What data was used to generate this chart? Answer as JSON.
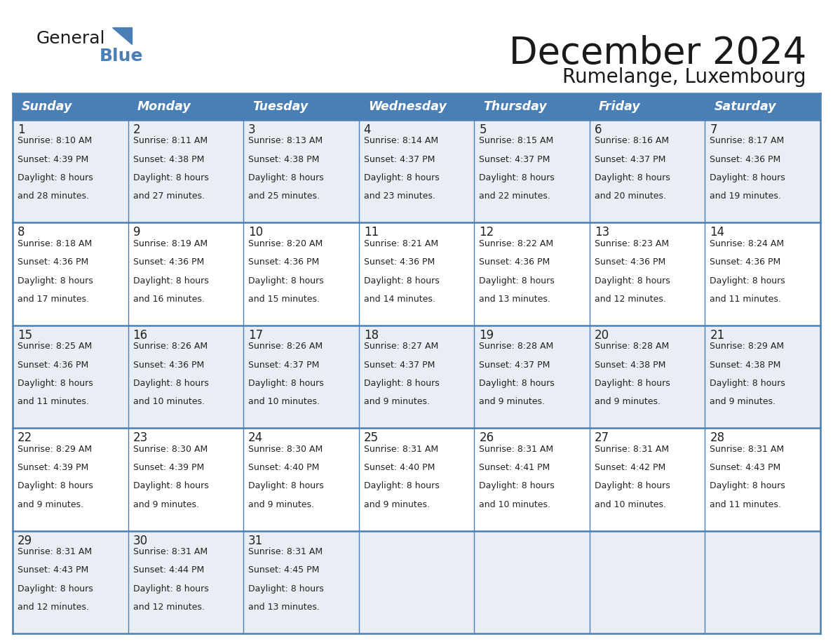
{
  "title": "December 2024",
  "subtitle": "Rumelange, Luxembourg",
  "header_bg": "#4a7fb5",
  "header_text_color": "#ffffff",
  "day_names": [
    "Sunday",
    "Monday",
    "Tuesday",
    "Wednesday",
    "Thursday",
    "Friday",
    "Saturday"
  ],
  "cell_bg_odd": "#e8eef4",
  "cell_bg_even": "#ffffff",
  "border_color": "#4a7fb5",
  "calendar_data": [
    [
      {
        "day": 1,
        "sunrise": "8:10 AM",
        "sunset": "4:39 PM",
        "daylight_line3": "Daylight: 8 hours",
        "daylight_line4": "and 28 minutes."
      },
      {
        "day": 2,
        "sunrise": "8:11 AM",
        "sunset": "4:38 PM",
        "daylight_line3": "Daylight: 8 hours",
        "daylight_line4": "and 27 minutes."
      },
      {
        "day": 3,
        "sunrise": "8:13 AM",
        "sunset": "4:38 PM",
        "daylight_line3": "Daylight: 8 hours",
        "daylight_line4": "and 25 minutes."
      },
      {
        "day": 4,
        "sunrise": "8:14 AM",
        "sunset": "4:37 PM",
        "daylight_line3": "Daylight: 8 hours",
        "daylight_line4": "and 23 minutes."
      },
      {
        "day": 5,
        "sunrise": "8:15 AM",
        "sunset": "4:37 PM",
        "daylight_line3": "Daylight: 8 hours",
        "daylight_line4": "and 22 minutes."
      },
      {
        "day": 6,
        "sunrise": "8:16 AM",
        "sunset": "4:37 PM",
        "daylight_line3": "Daylight: 8 hours",
        "daylight_line4": "and 20 minutes."
      },
      {
        "day": 7,
        "sunrise": "8:17 AM",
        "sunset": "4:36 PM",
        "daylight_line3": "Daylight: 8 hours",
        "daylight_line4": "and 19 minutes."
      }
    ],
    [
      {
        "day": 8,
        "sunrise": "8:18 AM",
        "sunset": "4:36 PM",
        "daylight_line3": "Daylight: 8 hours",
        "daylight_line4": "and 17 minutes."
      },
      {
        "day": 9,
        "sunrise": "8:19 AM",
        "sunset": "4:36 PM",
        "daylight_line3": "Daylight: 8 hours",
        "daylight_line4": "and 16 minutes."
      },
      {
        "day": 10,
        "sunrise": "8:20 AM",
        "sunset": "4:36 PM",
        "daylight_line3": "Daylight: 8 hours",
        "daylight_line4": "and 15 minutes."
      },
      {
        "day": 11,
        "sunrise": "8:21 AM",
        "sunset": "4:36 PM",
        "daylight_line3": "Daylight: 8 hours",
        "daylight_line4": "and 14 minutes."
      },
      {
        "day": 12,
        "sunrise": "8:22 AM",
        "sunset": "4:36 PM",
        "daylight_line3": "Daylight: 8 hours",
        "daylight_line4": "and 13 minutes."
      },
      {
        "day": 13,
        "sunrise": "8:23 AM",
        "sunset": "4:36 PM",
        "daylight_line3": "Daylight: 8 hours",
        "daylight_line4": "and 12 minutes."
      },
      {
        "day": 14,
        "sunrise": "8:24 AM",
        "sunset": "4:36 PM",
        "daylight_line3": "Daylight: 8 hours",
        "daylight_line4": "and 11 minutes."
      }
    ],
    [
      {
        "day": 15,
        "sunrise": "8:25 AM",
        "sunset": "4:36 PM",
        "daylight_line3": "Daylight: 8 hours",
        "daylight_line4": "and 11 minutes."
      },
      {
        "day": 16,
        "sunrise": "8:26 AM",
        "sunset": "4:36 PM",
        "daylight_line3": "Daylight: 8 hours",
        "daylight_line4": "and 10 minutes."
      },
      {
        "day": 17,
        "sunrise": "8:26 AM",
        "sunset": "4:37 PM",
        "daylight_line3": "Daylight: 8 hours",
        "daylight_line4": "and 10 minutes."
      },
      {
        "day": 18,
        "sunrise": "8:27 AM",
        "sunset": "4:37 PM",
        "daylight_line3": "Daylight: 8 hours",
        "daylight_line4": "and 9 minutes."
      },
      {
        "day": 19,
        "sunrise": "8:28 AM",
        "sunset": "4:37 PM",
        "daylight_line3": "Daylight: 8 hours",
        "daylight_line4": "and 9 minutes."
      },
      {
        "day": 20,
        "sunrise": "8:28 AM",
        "sunset": "4:38 PM",
        "daylight_line3": "Daylight: 8 hours",
        "daylight_line4": "and 9 minutes."
      },
      {
        "day": 21,
        "sunrise": "8:29 AM",
        "sunset": "4:38 PM",
        "daylight_line3": "Daylight: 8 hours",
        "daylight_line4": "and 9 minutes."
      }
    ],
    [
      {
        "day": 22,
        "sunrise": "8:29 AM",
        "sunset": "4:39 PM",
        "daylight_line3": "Daylight: 8 hours",
        "daylight_line4": "and 9 minutes."
      },
      {
        "day": 23,
        "sunrise": "8:30 AM",
        "sunset": "4:39 PM",
        "daylight_line3": "Daylight: 8 hours",
        "daylight_line4": "and 9 minutes."
      },
      {
        "day": 24,
        "sunrise": "8:30 AM",
        "sunset": "4:40 PM",
        "daylight_line3": "Daylight: 8 hours",
        "daylight_line4": "and 9 minutes."
      },
      {
        "day": 25,
        "sunrise": "8:31 AM",
        "sunset": "4:40 PM",
        "daylight_line3": "Daylight: 8 hours",
        "daylight_line4": "and 9 minutes."
      },
      {
        "day": 26,
        "sunrise": "8:31 AM",
        "sunset": "4:41 PM",
        "daylight_line3": "Daylight: 8 hours",
        "daylight_line4": "and 10 minutes."
      },
      {
        "day": 27,
        "sunrise": "8:31 AM",
        "sunset": "4:42 PM",
        "daylight_line3": "Daylight: 8 hours",
        "daylight_line4": "and 10 minutes."
      },
      {
        "day": 28,
        "sunrise": "8:31 AM",
        "sunset": "4:43 PM",
        "daylight_line3": "Daylight: 8 hours",
        "daylight_line4": "and 11 minutes."
      }
    ],
    [
      {
        "day": 29,
        "sunrise": "8:31 AM",
        "sunset": "4:43 PM",
        "daylight_line3": "Daylight: 8 hours",
        "daylight_line4": "and 12 minutes."
      },
      {
        "day": 30,
        "sunrise": "8:31 AM",
        "sunset": "4:44 PM",
        "daylight_line3": "Daylight: 8 hours",
        "daylight_line4": "and 12 minutes."
      },
      {
        "day": 31,
        "sunrise": "8:31 AM",
        "sunset": "4:45 PM",
        "daylight_line3": "Daylight: 8 hours",
        "daylight_line4": "and 13 minutes."
      },
      null,
      null,
      null,
      null
    ]
  ]
}
